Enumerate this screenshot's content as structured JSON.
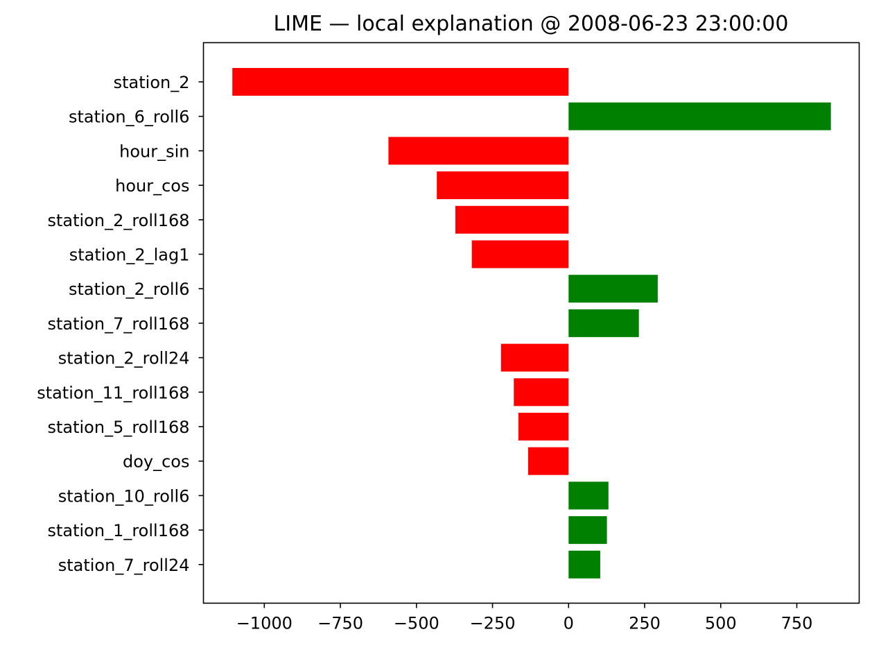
{
  "chart_data": {
    "type": "bar",
    "orientation": "horizontal",
    "title": "LIME — local explanation @ 2008-06-23 23:00:00",
    "xlabel": "",
    "ylabel": "",
    "xlim": [
      -1200,
      955
    ],
    "categories": [
      "station_2",
      "station_6_roll6",
      "hour_sin",
      "hour_cos",
      "station_2_roll168",
      "station_2_lag1",
      "station_2_roll6",
      "station_7_roll168",
      "station_2_roll24",
      "station_11_roll168",
      "station_5_roll168",
      "doy_cos",
      "station_10_roll6",
      "station_1_roll168",
      "station_7_roll24"
    ],
    "values": [
      -1105,
      862,
      -592,
      -433,
      -372,
      -318,
      293,
      231,
      -222,
      -180,
      -165,
      -133,
      131,
      126,
      104
    ],
    "xticks": [
      -1000,
      -750,
      -500,
      -250,
      0,
      250,
      500,
      750
    ],
    "xtick_labels": [
      "−1000",
      "−750",
      "−500",
      "−250",
      "0",
      "250",
      "500",
      "750"
    ],
    "colors": {
      "positive": "#008000",
      "negative": "#ff0000"
    },
    "grid": false,
    "legend": "none"
  }
}
